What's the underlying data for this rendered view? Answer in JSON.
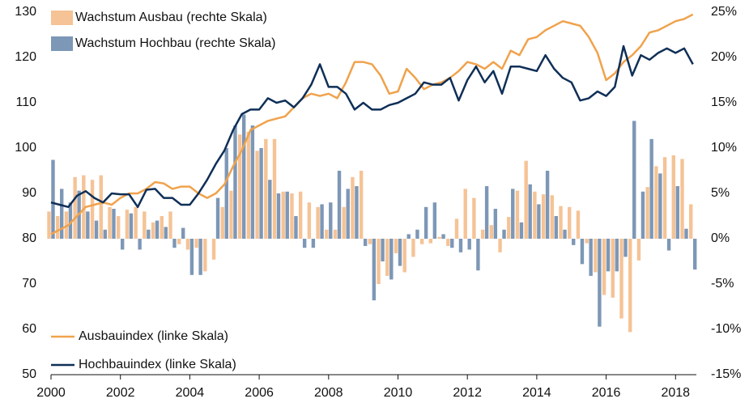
{
  "chart_data": {
    "type": "combo",
    "x": [
      2000,
      2000.25,
      2000.5,
      2000.75,
      2001,
      2001.25,
      2001.5,
      2001.75,
      2002,
      2002.25,
      2002.5,
      2002.75,
      2003,
      2003.25,
      2003.5,
      2003.75,
      2004,
      2004.25,
      2004.5,
      2004.75,
      2005,
      2005.25,
      2005.5,
      2005.75,
      2006,
      2006.25,
      2006.5,
      2006.75,
      2007,
      2007.25,
      2007.5,
      2007.75,
      2008,
      2008.25,
      2008.5,
      2008.75,
      2009,
      2009.25,
      2009.5,
      2009.75,
      2010,
      2010.25,
      2010.5,
      2010.75,
      2011,
      2011.25,
      2011.5,
      2011.75,
      2012,
      2012.25,
      2012.5,
      2012.75,
      2013,
      2013.25,
      2013.5,
      2013.75,
      2014,
      2014.25,
      2014.5,
      2014.75,
      2015,
      2015.25,
      2015.5,
      2015.75,
      2016,
      2016.25,
      2016.5,
      2016.75,
      2017,
      2017.25,
      2017.5,
      2017.75,
      2018,
      2018.25,
      2018.5
    ],
    "series": [
      {
        "name": "Wachstum Ausbau (rechte Skala)",
        "type": "bar",
        "axis": "y2",
        "color": "#f5c396",
        "values": [
          3.0,
          2.5,
          3.0,
          6.8,
          7.0,
          6.5,
          7.0,
          3.5,
          2.5,
          3.2,
          3.5,
          3.0,
          1.8,
          2.5,
          3.0,
          -0.6,
          -1.2,
          -1.0,
          -3.6,
          -2.3,
          3.5,
          5.3,
          11.5,
          11.8,
          9.7,
          11.0,
          11.0,
          5.2,
          5.0,
          5.2,
          4.0,
          3.5,
          1.0,
          1.0,
          3.5,
          6.8,
          7.5,
          -0.6,
          -5.0,
          -4.1,
          -1.6,
          -3.7,
          -2.0,
          -0.6,
          -0.5,
          0.2,
          -0.8,
          2.2,
          5.5,
          4.5,
          1.0,
          1.5,
          -1.5,
          2.4,
          5.3,
          8.6,
          5.2,
          4.9,
          4.8,
          3.6,
          3.5,
          3.1,
          -0.5,
          -3.7,
          -6.2,
          -6.5,
          -8.8,
          -10.3,
          -2.4,
          5.7,
          8.0,
          9.0,
          9.2,
          8.8,
          3.8
        ]
      },
      {
        "name": "Wachstum Hochbau (rechte Skala)",
        "type": "bar",
        "axis": "y2",
        "color": "#7d97b6",
        "values": [
          8.7,
          5.5,
          4.0,
          5.3,
          3.0,
          2.0,
          1.0,
          3.3,
          -1.2,
          2.8,
          -1.2,
          1.0,
          2.0,
          1.3,
          -1.0,
          1.2,
          -4.0,
          -4.0,
          0.0,
          4.5,
          10.0,
          12.5,
          13.7,
          12.5,
          10.0,
          6.5,
          5.0,
          5.2,
          2.5,
          -1.0,
          -1.0,
          3.8,
          4.0,
          7.5,
          5.5,
          5.8,
          -0.8,
          -6.8,
          -2.5,
          -4.5,
          -3.0,
          0.5,
          1.0,
          3.5,
          4.0,
          0.5,
          -1.0,
          -1.5,
          -1.2,
          -3.5,
          5.8,
          3.3,
          1.0,
          5.5,
          1.8,
          6.0,
          3.8,
          7.5,
          2.5,
          1.0,
          -0.7,
          -2.8,
          -4.1,
          -9.7,
          -3.6,
          -3.6,
          -2.0,
          13.0,
          5.2,
          11.0,
          7.2,
          -1.3,
          5.8,
          1.1,
          -3.4
        ]
      },
      {
        "name": "Ausbauindex (linke Skala)",
        "type": "line",
        "color": "#f0a24c",
        "values": [
          81,
          82,
          83,
          85,
          87,
          87.5,
          88,
          87.5,
          89,
          90,
          90,
          91,
          92.5,
          92.2,
          91,
          91.5,
          91.5,
          90,
          89,
          90,
          92,
          96,
          99.5,
          104,
          105,
          106,
          106.5,
          107,
          109,
          111,
          112,
          111.5,
          112,
          111,
          114.5,
          119,
          119,
          118.5,
          116,
          112,
          112.5,
          117.5,
          115.5,
          113,
          114,
          114.5,
          115.5,
          117,
          119,
          118.5,
          117.5,
          119,
          117.5,
          121.5,
          120.5,
          124,
          124.5,
          126,
          127,
          128,
          127.5,
          127,
          124.5,
          121,
          115,
          116.5,
          119,
          120.5,
          122.5,
          125.5,
          126,
          127,
          128,
          128.5,
          129.5
        ]
      },
      {
        "name": "Hochbauindex (linke Skala)",
        "type": "line",
        "color": "#0f2f57",
        "values": [
          88,
          87.5,
          87,
          89.5,
          90.5,
          89,
          88,
          90,
          89.8,
          89.8,
          87,
          90.8,
          91,
          89,
          89,
          87.5,
          87.5,
          90,
          93,
          96.5,
          99.5,
          104,
          107.5,
          108.5,
          108.5,
          111,
          110,
          110.5,
          109,
          111,
          114,
          118.5,
          113.5,
          113.5,
          112,
          108.5,
          110,
          108.5,
          108.5,
          109.5,
          110,
          111,
          112,
          114.5,
          114,
          114,
          115.5,
          110.5,
          115,
          118,
          114.5,
          117,
          112,
          118,
          118,
          117.5,
          117,
          120.5,
          117.5,
          115.5,
          114.5,
          110.5,
          111,
          112.5,
          111.5,
          113.5,
          122.5,
          116,
          120.5,
          119.5,
          121,
          122,
          121,
          122,
          118.5
        ]
      }
    ],
    "xlim": [
      2000,
      2018.6
    ],
    "xticks": [
      2000,
      2002,
      2004,
      2006,
      2008,
      2010,
      2012,
      2014,
      2016,
      2018
    ],
    "ylim": [
      50,
      130
    ],
    "yticks": [
      50,
      60,
      70,
      80,
      90,
      100,
      110,
      120,
      130
    ],
    "y2lim": [
      -15,
      25
    ],
    "y2ticks": [
      {
        "value": -15,
        "label": "-15%"
      },
      {
        "value": -10,
        "label": "-10%"
      },
      {
        "value": -5,
        "label": "-5%"
      },
      {
        "value": 0,
        "label": "0%"
      },
      {
        "value": 5,
        "label": "5%"
      },
      {
        "value": 10,
        "label": "10%"
      },
      {
        "value": 15,
        "label": "15%"
      },
      {
        "value": 20,
        "label": "20%"
      },
      {
        "value": 25,
        "label": "25%"
      }
    ]
  }
}
